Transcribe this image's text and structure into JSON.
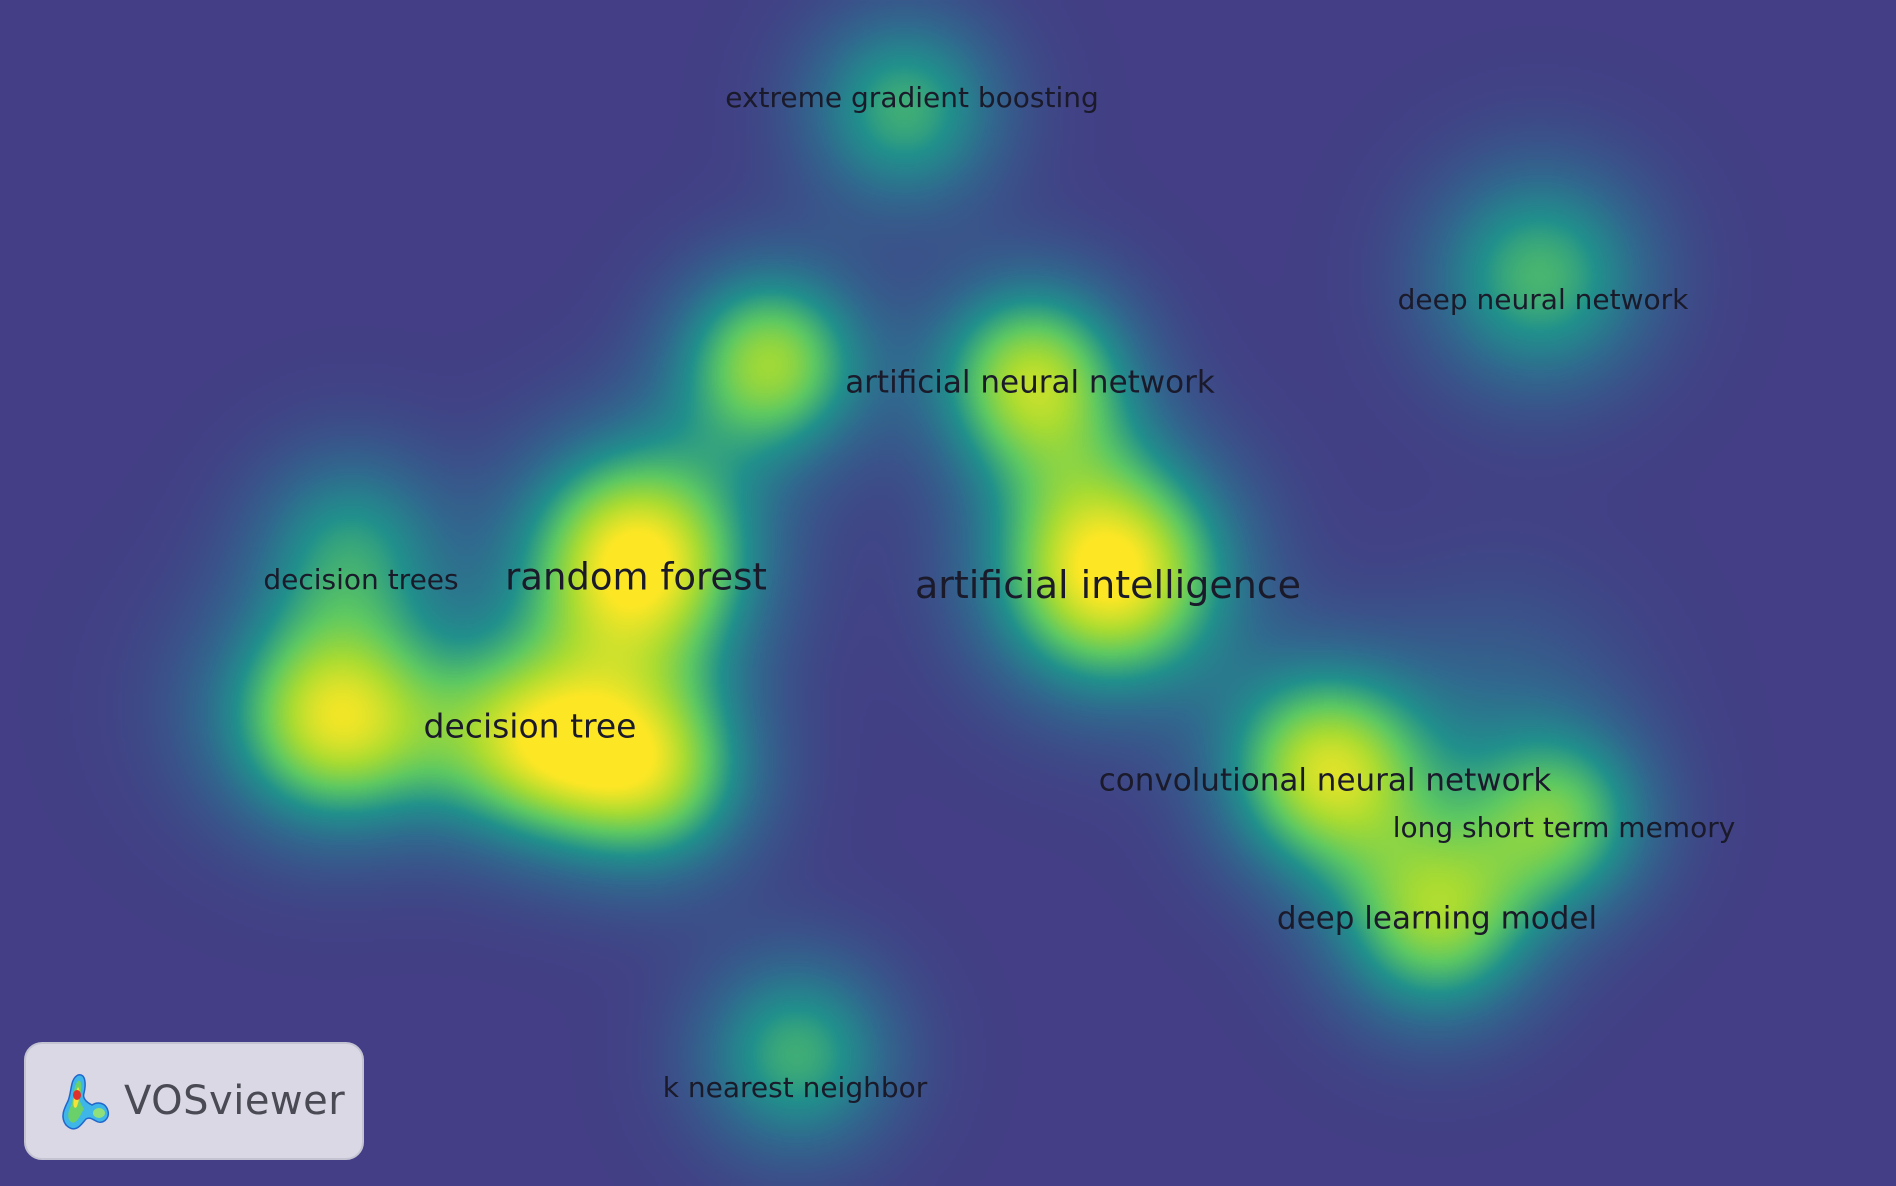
{
  "terms": [
    {
      "id": "extreme-gradient-boosting",
      "label": "extreme gradient boosting",
      "weight": 0.55
    },
    {
      "id": "deep-neural-network",
      "label": "deep neural network",
      "weight": 0.55
    },
    {
      "id": "artificial-neural-network",
      "label": "artificial neural network",
      "weight": 0.72
    },
    {
      "id": "random-forest",
      "label": "random forest",
      "weight": 1.0
    },
    {
      "id": "artificial-intelligence",
      "label": "artificial intelligence",
      "weight": 1.0
    },
    {
      "id": "decision-trees",
      "label": "decision trees",
      "weight": 0.5
    },
    {
      "id": "decision-tree",
      "label": "decision tree",
      "weight": 0.8
    },
    {
      "id": "convolutional-neural-network",
      "label": "convolutional neural network",
      "weight": 0.8
    },
    {
      "id": "long-short-term-memory",
      "label": "long short term memory",
      "weight": 0.6
    },
    {
      "id": "deep-learning-model",
      "label": "deep learning model",
      "weight": 0.72
    },
    {
      "id": "k-nearest-neighbor",
      "label": "k nearest neighbor",
      "weight": 0.55
    }
  ],
  "logo": {
    "text": "VOSviewer"
  },
  "colors": {
    "background": "#433e85",
    "low": "#21918c",
    "mid": "#5ec962",
    "high": "#fde725"
  }
}
